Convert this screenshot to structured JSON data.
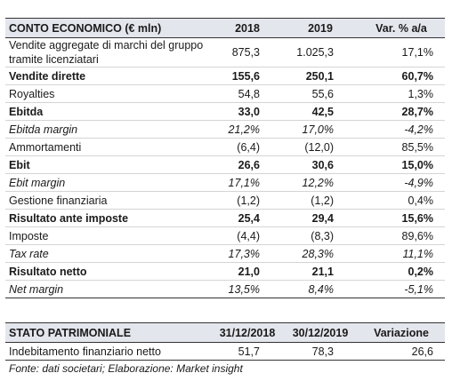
{
  "income_statement": {
    "header": [
      "CONTO ECONOMICO (€ mln)",
      "2018",
      "2019",
      "Var. % a/a"
    ],
    "rows": [
      [
        "Vendite aggregate di marchi del gruppo tramite licenziatari",
        "875,3",
        "1.025,3",
        "17,1%"
      ],
      [
        "Vendite dirette",
        "155,6",
        "250,1",
        "60,7%"
      ],
      [
        "Royalties",
        "54,8",
        "55,6",
        "1,3%"
      ],
      [
        "Ebitda",
        "33,0",
        "42,5",
        "28,7%"
      ],
      [
        "Ebitda margin",
        "21,2%",
        "17,0%",
        "-4,2%"
      ],
      [
        "Ammortamenti",
        "(6,4)",
        "(12,0)",
        "85,5%"
      ],
      [
        "Ebit",
        "26,6",
        "30,6",
        "15,0%"
      ],
      [
        "Ebit margin",
        "17,1%",
        "12,2%",
        "-4,9%"
      ],
      [
        "Gestione finanziaria",
        "(1,2)",
        "(1,2)",
        "0,4%"
      ],
      [
        "Risultato ante imposte",
        "25,4",
        "29,4",
        "15,6%"
      ],
      [
        "Imposte",
        "(4,4)",
        "(8,3)",
        "89,6%"
      ],
      [
        "Tax rate",
        "17,3%",
        "28,3%",
        "11,1%"
      ],
      [
        "Risultato netto",
        "21,0",
        "21,1",
        "0,2%"
      ],
      [
        "Net margin",
        "13,5%",
        "8,4%",
        "-5,1%"
      ]
    ]
  },
  "balance_sheet": {
    "header": [
      "STATO PATRIMONIALE",
      "31/12/2018",
      "30/12/2019",
      "Variazione"
    ],
    "rows": [
      [
        "Indebitamento finanziario netto",
        "51,7",
        "78,3",
        "26,6"
      ]
    ]
  },
  "footnote": "Fonte: dati societari; Elaborazione: Market insight"
}
